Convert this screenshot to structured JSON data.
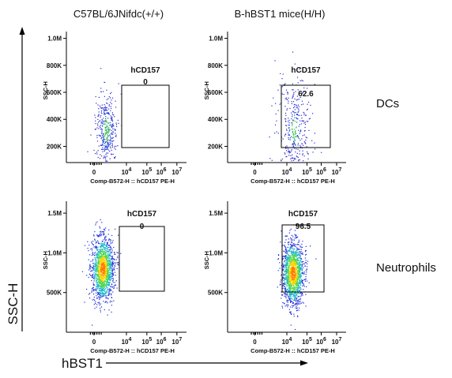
{
  "column_titles": [
    "C57BL/6JNifdc(+/+)",
    "B-hBST1 mice(H/H)"
  ],
  "row_labels": [
    "DCs",
    "Neutrophils"
  ],
  "global_y_label": "SSC-H",
  "global_x_label": "hBST1",
  "chart_data": [
    {
      "type": "scatter",
      "column": "C57BL/6JNifdc(+/+)",
      "row": "DCs",
      "ylabel": "SSC-H",
      "xlabel": "Comp-B572-H :: hCD157 PE-H",
      "yticks": [
        "200K",
        "400K",
        "600K",
        "800K",
        "1.0M"
      ],
      "xticks": [
        "0",
        "10^4",
        "10^5",
        "10^6",
        "10^7"
      ],
      "gate": {
        "name": "hCD157",
        "percent": "0"
      },
      "population": {
        "x_center_log": 3.7,
        "y_center": 320000,
        "density": "sparse"
      }
    },
    {
      "type": "scatter",
      "column": "B-hBST1 mice(H/H)",
      "row": "DCs",
      "ylabel": "SSC-H",
      "xlabel": "Comp-B572-H :: hCD157 PE-H",
      "yticks": [
        "200K",
        "400K",
        "600K",
        "800K",
        "1.0M"
      ],
      "xticks": [
        "0",
        "10^4",
        "10^5",
        "10^6",
        "10^7"
      ],
      "gate": {
        "name": "hCD157",
        "percent": "62.6"
      },
      "population": {
        "x_center_log": 4.1,
        "y_center": 320000,
        "density": "sparse"
      }
    },
    {
      "type": "scatter",
      "column": "C57BL/6JNifdc(+/+)",
      "row": "Neutrophils",
      "ylabel": "SSC-H",
      "xlabel": "Comp-B572-H :: hCD157 PE-H",
      "yticks": [
        "500K",
        "1.0M",
        "1.5M"
      ],
      "xticks": [
        "0",
        "10^4",
        "10^5",
        "10^6",
        "10^7"
      ],
      "gate": {
        "name": "hCD157",
        "percent": "0"
      },
      "population": {
        "x_center_log": 3.2,
        "y_center": 800000,
        "density": "dense"
      }
    },
    {
      "type": "scatter",
      "column": "B-hBST1 mice(H/H)",
      "row": "Neutrophils",
      "ylabel": "SSC-H",
      "xlabel": "Comp-B572-H :: hCD157 PE-H",
      "yticks": [
        "500K",
        "1.0M",
        "1.5M"
      ],
      "xticks": [
        "0",
        "10^4",
        "10^5",
        "10^6",
        "10^7"
      ],
      "gate": {
        "name": "hCD157",
        "percent": "96.5"
      },
      "population": {
        "x_center_log": 4.0,
        "y_center": 750000,
        "density": "dense"
      }
    }
  ]
}
